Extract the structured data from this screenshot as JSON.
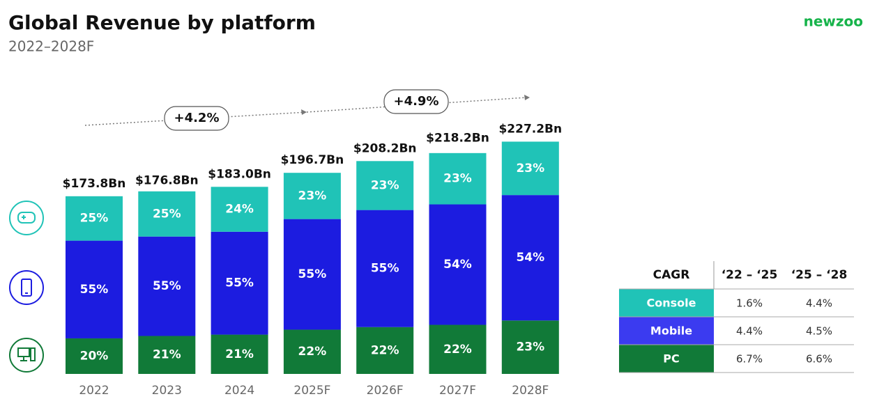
{
  "title": "Global Revenue by platform",
  "subtitle": "2022–2028F",
  "logo": "newzoo",
  "chart_data": {
    "type": "stacked-bar",
    "categories": [
      "2022",
      "2023",
      "2024",
      "2025F",
      "2026F",
      "2027F",
      "2028F"
    ],
    "totals": {
      "values": [
        173.8,
        176.8,
        183.0,
        196.7,
        208.2,
        218.2,
        227.2
      ],
      "value_labels": [
        "$173.8Bn",
        "$176.8Bn",
        "$183.0Bn",
        "$196.7Bn",
        "$208.2Bn",
        "$218.2Bn",
        "$227.2Bn"
      ]
    },
    "series": [
      {
        "name": "Console",
        "color": "#20c3b7",
        "values": [
          25,
          25,
          24,
          23,
          23,
          23,
          23
        ],
        "value_labels": [
          "25%",
          "25%",
          "24%",
          "23%",
          "23%",
          "23%",
          "23%"
        ]
      },
      {
        "name": "Mobile",
        "color": "#1c1ce0",
        "values": [
          55,
          55,
          55,
          55,
          55,
          54,
          54
        ],
        "value_labels": [
          "55%",
          "55%",
          "55%",
          "55%",
          "55%",
          "54%",
          "54%"
        ]
      },
      {
        "name": "PC",
        "color": "#117a38",
        "values": [
          20,
          21,
          21,
          22,
          22,
          22,
          23
        ],
        "value_labels": [
          "20%",
          "21%",
          "21%",
          "22%",
          "22%",
          "22%",
          "23%"
        ]
      }
    ],
    "annotations": [
      "+4.2%",
      "+4.9%"
    ]
  },
  "cagr_table": {
    "header": [
      "CAGR",
      "‘22 – ‘25",
      "‘25 – ‘28"
    ],
    "rows": [
      [
        "Console",
        "1.6%",
        "4.4%"
      ],
      [
        "Mobile",
        "4.4%",
        "4.5%"
      ],
      [
        "PC",
        "6.7%",
        "6.6%"
      ]
    ],
    "row_colors": [
      "#20c3b7",
      "#3b3bf0",
      "#117a38"
    ]
  }
}
